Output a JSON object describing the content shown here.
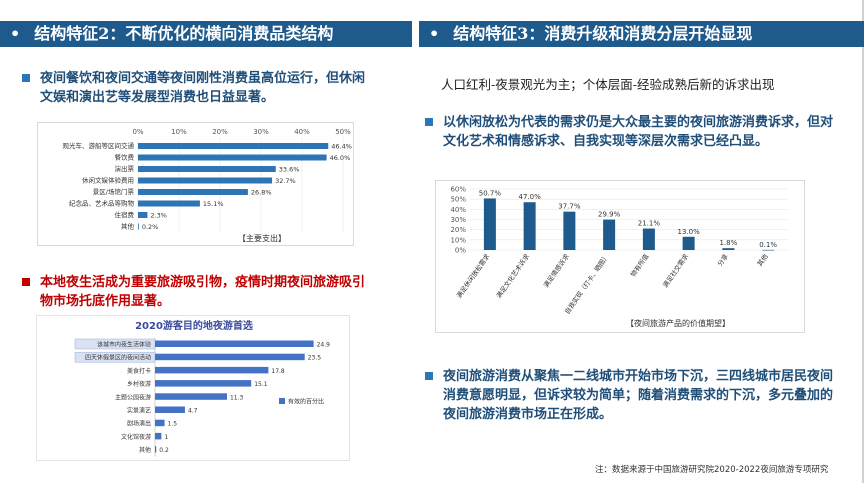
{
  "left_header": {
    "bullet": "•",
    "title": "结构特征2：不断优化的横向消费品类结构"
  },
  "right_header": {
    "bullet": "•",
    "title": "结构特征3：消费升级和消费分层开始显现"
  },
  "left_point1": "夜间餐饮和夜间交通等夜间刚性消费虽高位运行，但休闲文娱和演出艺等发展型消费也日益显著。",
  "left_point2": "本地夜生活成为重要旅游吸引物，疫情时期夜间旅游吸引物市场托底作用显著。",
  "right_tagline": "人口红利-夜景观光为主；个体层面-经验成熟后新的诉求出现",
  "right_point1": "以休闲放松为代表的需求仍是大众最主要的夜间旅游消费诉求，但对文化艺术和情感诉求、自我实现等深层次需求已经凸显。",
  "right_point2": "夜间旅游消费从聚焦一二线城市开始市场下沉，三四线城市居民夜间消费意愿明显，但诉求较为简单；随着消费需求的下沉，多元叠加的夜间旅游消费市场正在形成。",
  "footnote": "注：数据来源于中国旅游研究院2020-2022夜间旅游专项研究",
  "chart_data": [
    {
      "type": "bar",
      "orientation": "horizontal",
      "categories": [
        "观光车、游船等区间交通",
        "餐饮费",
        "演出票",
        "休闲文娱体验费用",
        "景区/场馆门票",
        "纪念品、艺术品等购物",
        "住宿费",
        "其他"
      ],
      "values": [
        46.4,
        46.0,
        33.6,
        32.7,
        26.8,
        15.1,
        2.3,
        0.2
      ],
      "value_labels": [
        "46.4%",
        "46.0%",
        "33.6%",
        "32.7%",
        "26.8%",
        "15.1%",
        "2.3%",
        "0.2%"
      ],
      "xticks": [
        "0%",
        "10%",
        "20%",
        "30%",
        "40%",
        "50%"
      ],
      "xlim": [
        0,
        50
      ],
      "caption": "【主要支出】",
      "color": "#2e75b6"
    },
    {
      "type": "bar",
      "orientation": "horizontal",
      "title": "2020游客目的地夜游首选",
      "categories": [
        "该城市内夜生活体验",
        "四天休假景区的夜间活动",
        "美食打卡",
        "乡村夜游",
        "主题公园夜游",
        "实景演艺",
        "剧场演出",
        "文化馆夜游",
        "其他"
      ],
      "values": [
        24.9,
        23.5,
        17.8,
        15.1,
        11.3,
        4.7,
        1.5,
        1,
        0.2
      ],
      "value_labels": [
        "24.9",
        "23.5",
        "17.8",
        "15.1",
        "11.3",
        "4.7",
        "1.5",
        "1",
        "0.2"
      ],
      "legend": "有效的百分比",
      "xlim": [
        0,
        27
      ],
      "color": "#4472c4"
    },
    {
      "type": "bar",
      "orientation": "vertical",
      "categories": [
        "满足休闲放松需求",
        "满足文化艺术诉求",
        "满足情感诉求",
        "自我实现（打卡、晒图）",
        "物有所值",
        "满足社交需求",
        "分享",
        "其他"
      ],
      "values": [
        50.7,
        47.0,
        37.7,
        29.9,
        21.1,
        13.0,
        1.8,
        0.1
      ],
      "value_labels": [
        "50.7%",
        "47.0%",
        "37.7%",
        "29.9%",
        "21.1%",
        "13.0%",
        "1.8%",
        "0.1%"
      ],
      "yticks": [
        "0%",
        "10%",
        "20%",
        "30%",
        "40%",
        "50%",
        "60%"
      ],
      "ylim": [
        0,
        60
      ],
      "caption": "【夜间旅游产品的价值期望】",
      "color": "#1f5a8c"
    }
  ]
}
